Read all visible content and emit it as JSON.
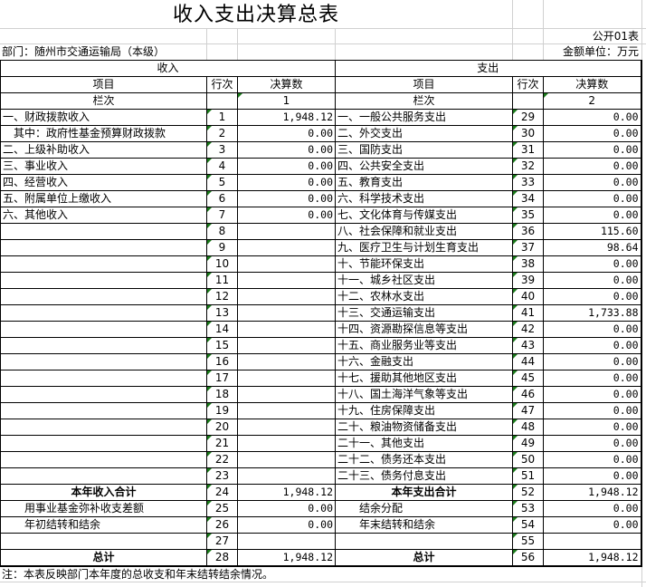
{
  "title": "收入支出决算总表",
  "form_no": "公开01表",
  "department": "部门：随州市交通运输局（本级）",
  "unit": "金额单位：万元",
  "header": {
    "income": "收入",
    "expense": "支出",
    "item": "项目",
    "line": "行次",
    "amount": "决算数",
    "column": "栏次",
    "col1": "1",
    "col2": "2"
  },
  "rows": [
    {
      "in_item": "一、财政拨款收入",
      "in_no": "1",
      "in_amt": "1,948.12",
      "ex_item": "一、一般公共服务支出",
      "ex_no": "29",
      "ex_amt": "0.00"
    },
    {
      "in_item": "　其中：政府性基金预算财政拨款",
      "in_no": "2",
      "in_amt": "0.00",
      "ex_item": "二、外交支出",
      "ex_no": "30",
      "ex_amt": "0.00"
    },
    {
      "in_item": "二、上级补助收入",
      "in_no": "3",
      "in_amt": "0.00",
      "ex_item": "三、国防支出",
      "ex_no": "31",
      "ex_amt": "0.00"
    },
    {
      "in_item": "三、事业收入",
      "in_no": "4",
      "in_amt": "0.00",
      "ex_item": "四、公共安全支出",
      "ex_no": "32",
      "ex_amt": "0.00"
    },
    {
      "in_item": "四、经营收入",
      "in_no": "5",
      "in_amt": "0.00",
      "ex_item": "五、教育支出",
      "ex_no": "33",
      "ex_amt": "0.00"
    },
    {
      "in_item": "五、附属单位上缴收入",
      "in_no": "6",
      "in_amt": "0.00",
      "ex_item": "六、科学技术支出",
      "ex_no": "34",
      "ex_amt": "0.00"
    },
    {
      "in_item": "六、其他收入",
      "in_no": "7",
      "in_amt": "0.00",
      "ex_item": "七、文化体育与传媒支出",
      "ex_no": "35",
      "ex_amt": "0.00"
    },
    {
      "in_item": "",
      "in_no": "8",
      "in_amt": "",
      "ex_item": "八、社会保障和就业支出",
      "ex_no": "36",
      "ex_amt": "115.60"
    },
    {
      "in_item": "",
      "in_no": "9",
      "in_amt": "",
      "ex_item": "九、医疗卫生与计划生育支出",
      "ex_no": "37",
      "ex_amt": "98.64"
    },
    {
      "in_item": "",
      "in_no": "10",
      "in_amt": "",
      "ex_item": "十、节能环保支出",
      "ex_no": "38",
      "ex_amt": "0.00"
    },
    {
      "in_item": "",
      "in_no": "11",
      "in_amt": "",
      "ex_item": "十一、城乡社区支出",
      "ex_no": "39",
      "ex_amt": "0.00"
    },
    {
      "in_item": "",
      "in_no": "12",
      "in_amt": "",
      "ex_item": "十二、农林水支出",
      "ex_no": "40",
      "ex_amt": "0.00"
    },
    {
      "in_item": "",
      "in_no": "13",
      "in_amt": "",
      "ex_item": "十三、交通运输支出",
      "ex_no": "41",
      "ex_amt": "1,733.88"
    },
    {
      "in_item": "",
      "in_no": "14",
      "in_amt": "",
      "ex_item": "十四、资源勘探信息等支出",
      "ex_no": "42",
      "ex_amt": "0.00"
    },
    {
      "in_item": "",
      "in_no": "15",
      "in_amt": "",
      "ex_item": "十五、商业服务业等支出",
      "ex_no": "43",
      "ex_amt": "0.00"
    },
    {
      "in_item": "",
      "in_no": "16",
      "in_amt": "",
      "ex_item": "十六、金融支出",
      "ex_no": "44",
      "ex_amt": "0.00"
    },
    {
      "in_item": "",
      "in_no": "17",
      "in_amt": "",
      "ex_item": "十七、援助其他地区支出",
      "ex_no": "45",
      "ex_amt": "0.00"
    },
    {
      "in_item": "",
      "in_no": "18",
      "in_amt": "",
      "ex_item": "十八、国土海洋气象等支出",
      "ex_no": "46",
      "ex_amt": "0.00"
    },
    {
      "in_item": "",
      "in_no": "19",
      "in_amt": "",
      "ex_item": "十九、住房保障支出",
      "ex_no": "47",
      "ex_amt": "0.00"
    },
    {
      "in_item": "",
      "in_no": "20",
      "in_amt": "",
      "ex_item": "二十、粮油物资储备支出",
      "ex_no": "48",
      "ex_amt": "0.00"
    },
    {
      "in_item": "",
      "in_no": "21",
      "in_amt": "",
      "ex_item": "二十一、其他支出",
      "ex_no": "49",
      "ex_amt": "0.00"
    },
    {
      "in_item": "",
      "in_no": "22",
      "in_amt": "",
      "ex_item": "二十二、债务还本支出",
      "ex_no": "50",
      "ex_amt": "0.00"
    },
    {
      "in_item": "",
      "in_no": "23",
      "in_amt": "",
      "ex_item": "二十三、债务付息支出",
      "ex_no": "51",
      "ex_amt": "0.00"
    },
    {
      "in_item": "本年收入合计",
      "in_no": "24",
      "in_amt": "1,948.12",
      "ex_item": "本年支出合计",
      "ex_no": "52",
      "ex_amt": "1,948.12",
      "bold": true
    },
    {
      "in_item": "　　用事业基金弥补收支差额",
      "in_no": "25",
      "in_amt": "0.00",
      "ex_item": "　　结余分配",
      "ex_no": "53",
      "ex_amt": "0.00"
    },
    {
      "in_item": "　　年初结转和结余",
      "in_no": "26",
      "in_amt": "0.00",
      "ex_item": "　　年末结转和结余",
      "ex_no": "54",
      "ex_amt": "0.00"
    },
    {
      "in_item": "",
      "in_no": "27",
      "in_amt": "",
      "ex_item": "",
      "ex_no": "55",
      "ex_amt": ""
    },
    {
      "in_item": "总计",
      "in_no": "28",
      "in_amt": "1,948.12",
      "ex_item": "总计",
      "ex_no": "56",
      "ex_amt": "1,948.12",
      "bold": true
    }
  ],
  "note": "注：本表反映部门本年度的总收支和年末结转结余情况。"
}
